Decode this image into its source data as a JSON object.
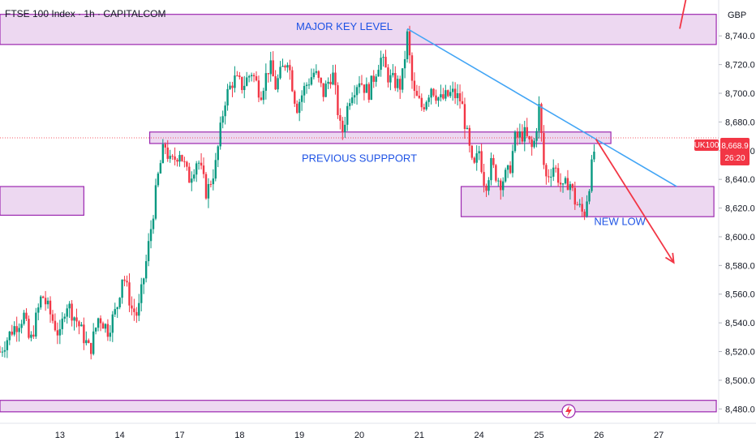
{
  "header": {
    "title": "FTSE 100 Index · 1h · CAPITALCOM",
    "currency": "GBP"
  },
  "price_badge": {
    "symbol": "UK100",
    "price": "8,668.9",
    "countdown": "26:20"
  },
  "colors": {
    "up": "#089981",
    "down": "#f23645",
    "zone_fill": "#e1bee7",
    "zone_stroke": "#9c27b0",
    "trendline": "#42a5f5",
    "arrow": "#f23645",
    "annotation": "#1e53e5"
  },
  "chart_data": {
    "type": "candlestick",
    "title": "FTSE 100 Index · 1h · CAPITALCOM",
    "y_axis": {
      "ticks": [
        "8,480.0",
        "8,500.0",
        "8,520.0",
        "8,540.0",
        "8,560.0",
        "8,580.0",
        "8,600.0",
        "8,620.0",
        "8,640.0",
        "8,660.0",
        "8,680.0",
        "8,700.0",
        "8,720.0",
        "8,740.0"
      ],
      "tick_values": [
        8480,
        8500,
        8520,
        8540,
        8560,
        8580,
        8600,
        8620,
        8640,
        8660,
        8680,
        8700,
        8720,
        8740
      ],
      "range": [
        8470,
        8765
      ],
      "side": "right"
    },
    "x_axis": {
      "labels": [
        "13",
        "14",
        "17",
        "18",
        "19",
        "20",
        "21",
        "24",
        "25",
        "26",
        "27"
      ],
      "label_positions": [
        0.5,
        1.5,
        2.5,
        3.5,
        4.5,
        5.5,
        6.5,
        7.5,
        8.5,
        9.5,
        10.5
      ],
      "range": [
        -0.5,
        11.5
      ]
    },
    "last_price": 8668.9,
    "candle_path": [
      [
        -0.5,
        8520
      ],
      [
        -0.3,
        8535
      ],
      [
        -0.1,
        8545
      ],
      [
        0.0,
        8525
      ],
      [
        0.2,
        8560
      ],
      [
        0.4,
        8540
      ],
      [
        0.5,
        8530
      ],
      [
        0.6,
        8555
      ],
      [
        0.8,
        8540
      ],
      [
        1.0,
        8520
      ],
      [
        1.15,
        8545
      ],
      [
        1.3,
        8535
      ],
      [
        1.45,
        8550
      ],
      [
        1.55,
        8575
      ],
      [
        1.7,
        8550
      ],
      [
        1.8,
        8545
      ],
      [
        1.95,
        8585
      ],
      [
        2.05,
        8615
      ],
      [
        2.15,
        8645
      ],
      [
        2.25,
        8665
      ],
      [
        2.35,
        8650
      ],
      [
        2.5,
        8660
      ],
      [
        2.65,
        8640
      ],
      [
        2.8,
        8655
      ],
      [
        2.95,
        8630
      ],
      [
        3.1,
        8650
      ],
      [
        3.25,
        8695
      ],
      [
        3.4,
        8710
      ],
      [
        3.55,
        8705
      ],
      [
        3.7,
        8715
      ],
      [
        3.85,
        8700
      ],
      [
        4.0,
        8720
      ],
      [
        4.1,
        8705
      ],
      [
        4.3,
        8725
      ],
      [
        4.45,
        8690
      ],
      [
        4.6,
        8705
      ],
      [
        4.75,
        8715
      ],
      [
        4.9,
        8700
      ],
      [
        5.05,
        8715
      ],
      [
        5.2,
        8670
      ],
      [
        5.35,
        8700
      ],
      [
        5.5,
        8710
      ],
      [
        5.65,
        8700
      ],
      [
        5.85,
        8725
      ],
      [
        6.0,
        8710
      ],
      [
        6.2,
        8705
      ],
      [
        6.3,
        8740
      ],
      [
        6.4,
        8700
      ],
      [
        6.55,
        8690
      ],
      [
        6.7,
        8705
      ],
      [
        6.85,
        8695
      ],
      [
        7.05,
        8700
      ],
      [
        7.2,
        8695
      ],
      [
        7.3,
        8670
      ],
      [
        7.4,
        8645
      ],
      [
        7.5,
        8660
      ],
      [
        7.6,
        8635
      ],
      [
        7.7,
        8650
      ],
      [
        7.85,
        8638
      ],
      [
        8.0,
        8645
      ],
      [
        8.1,
        8668
      ],
      [
        8.25,
        8672
      ],
      [
        8.4,
        8660
      ],
      [
        8.5,
        8690
      ],
      [
        8.6,
        8640
      ],
      [
        8.75,
        8650
      ],
      [
        8.9,
        8632
      ],
      [
        9.0,
        8640
      ],
      [
        9.1,
        8625
      ],
      [
        9.25,
        8615
      ],
      [
        9.35,
        8640
      ],
      [
        9.45,
        8668
      ]
    ],
    "zones": [
      {
        "name": "major-key-level-zone",
        "x": [
          -0.5,
          11.46
        ],
        "y": [
          8734,
          8755
        ]
      },
      {
        "name": "previous-support-zone",
        "x": [
          2.0,
          9.7
        ],
        "y": [
          8665,
          8673
        ]
      },
      {
        "name": "left-support-zone",
        "x": [
          -0.5,
          0.9
        ],
        "y": [
          8615,
          8635
        ]
      },
      {
        "name": "new-low-zone",
        "x": [
          7.2,
          11.42
        ],
        "y": [
          8614,
          8635
        ]
      },
      {
        "name": "bottom-zone",
        "x": [
          -0.5,
          11.46
        ],
        "y": [
          8478,
          8486
        ]
      }
    ],
    "trendline": {
      "from": [
        6.3,
        8745
      ],
      "to": [
        10.8,
        8635
      ]
    },
    "arrows": [
      {
        "name": "projected-down-arrow",
        "from": [
          9.45,
          8668
        ],
        "to": [
          10.75,
          8582
        ]
      },
      {
        "name": "top-right-arrow",
        "from": [
          10.85,
          8745
        ],
        "to": [
          11.1,
          8795
        ]
      }
    ],
    "annotations": [
      {
        "name": "major-key-level-label",
        "text": "MAJOR KEY LEVEL",
        "at": [
          5.25,
          8747
        ]
      },
      {
        "name": "previous-support-label",
        "text": "PREVIOUS SUPPPORT",
        "at": [
          5.5,
          8655
        ]
      },
      {
        "name": "new-low-label",
        "text": "NEW LOW",
        "at": [
          9.85,
          8611
        ]
      }
    ]
  }
}
